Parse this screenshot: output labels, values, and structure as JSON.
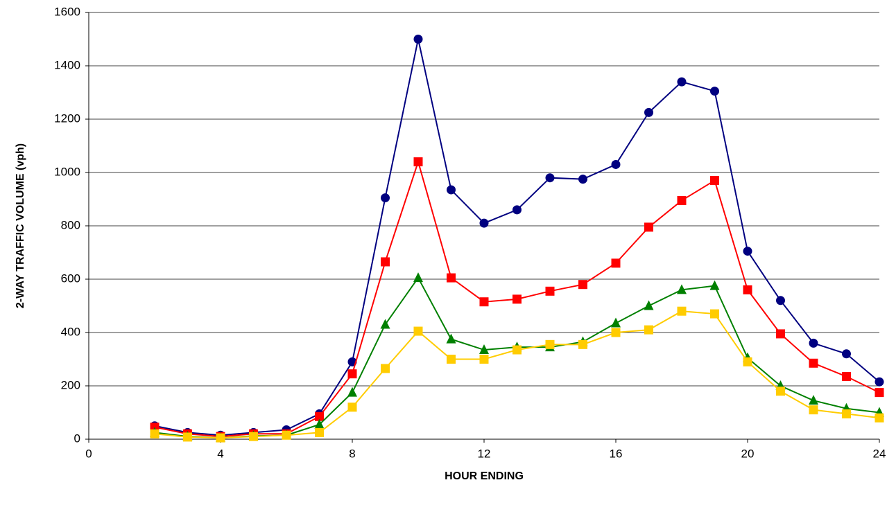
{
  "chart_data": {
    "type": "line",
    "x_label": "HOUR ENDING",
    "y_label": "2-WAY TRAFFIC VOLUME (vph)",
    "x": [
      2,
      3,
      4,
      5,
      6,
      7,
      8,
      9,
      10,
      11,
      12,
      13,
      14,
      15,
      16,
      17,
      18,
      19,
      20,
      21,
      22,
      23,
      24
    ],
    "series": [
      {
        "color": "#000080",
        "marker": "circle",
        "values": [
          50,
          25,
          15,
          25,
          35,
          95,
          290,
          905,
          1500,
          935,
          810,
          860,
          980,
          975,
          1030,
          1225,
          1340,
          1305,
          705,
          520,
          360,
          320,
          215
        ]
      },
      {
        "color": "#ff0000",
        "marker": "square",
        "values": [
          45,
          20,
          10,
          20,
          20,
          85,
          245,
          665,
          1040,
          605,
          515,
          525,
          555,
          580,
          660,
          795,
          895,
          970,
          560,
          395,
          285,
          235,
          175
        ]
      },
      {
        "color": "#008000",
        "marker": "triangle",
        "values": [
          25,
          10,
          5,
          12,
          15,
          55,
          175,
          430,
          605,
          375,
          335,
          345,
          345,
          365,
          435,
          500,
          560,
          575,
          305,
          200,
          145,
          115,
          100
        ]
      },
      {
        "color": "#ffcc00",
        "marker": "square",
        "values": [
          20,
          8,
          5,
          10,
          15,
          25,
          120,
          265,
          405,
          300,
          300,
          335,
          355,
          355,
          400,
          410,
          480,
          470,
          290,
          180,
          110,
          95,
          80
        ]
      }
    ],
    "xlim": [
      0,
      24
    ],
    "xticks": [
      0,
      4,
      8,
      12,
      16,
      20,
      24
    ],
    "ylim": [
      0,
      1600
    ],
    "yticks": [
      0,
      200,
      400,
      600,
      800,
      1000,
      1200,
      1400,
      1600
    ],
    "grid": true
  }
}
